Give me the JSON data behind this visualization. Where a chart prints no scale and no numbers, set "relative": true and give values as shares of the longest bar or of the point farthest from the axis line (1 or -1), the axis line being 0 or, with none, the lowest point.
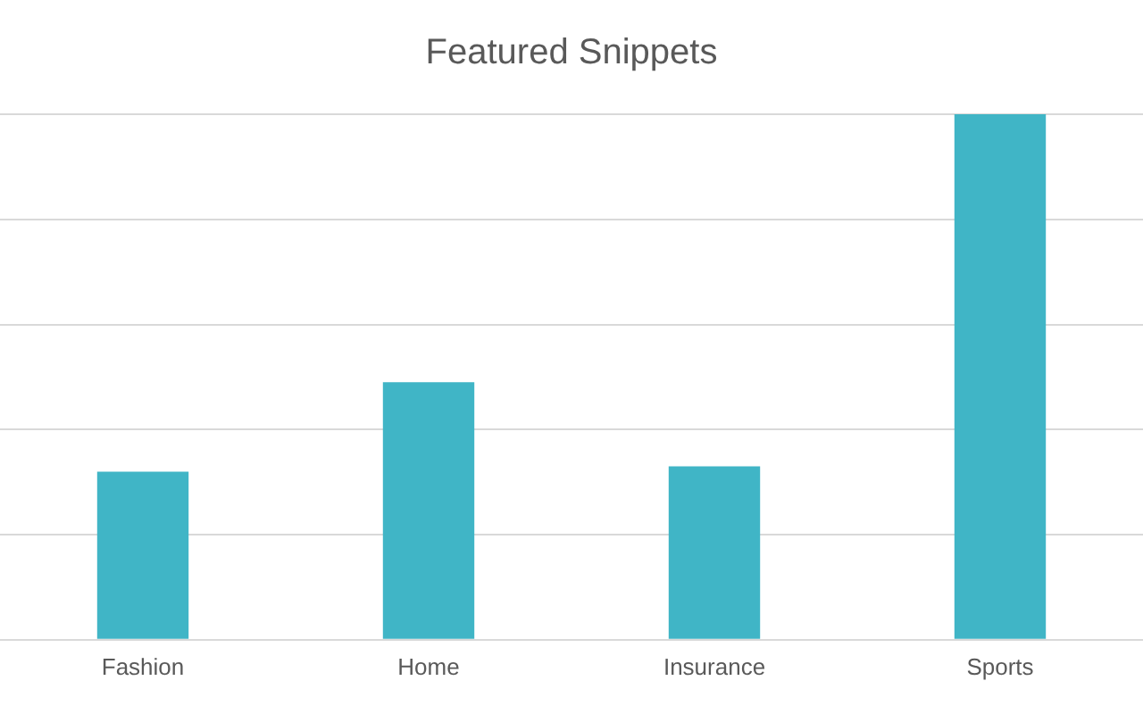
{
  "chart_data": {
    "type": "bar",
    "title": "Featured Snippets",
    "categories": [
      "Fashion",
      "Home",
      "Insurance",
      "Sports"
    ],
    "values": [
      0.32,
      0.49,
      0.33,
      1
    ],
    "color": "#40b5c6",
    "relative": true,
    "grid": "y"
  }
}
